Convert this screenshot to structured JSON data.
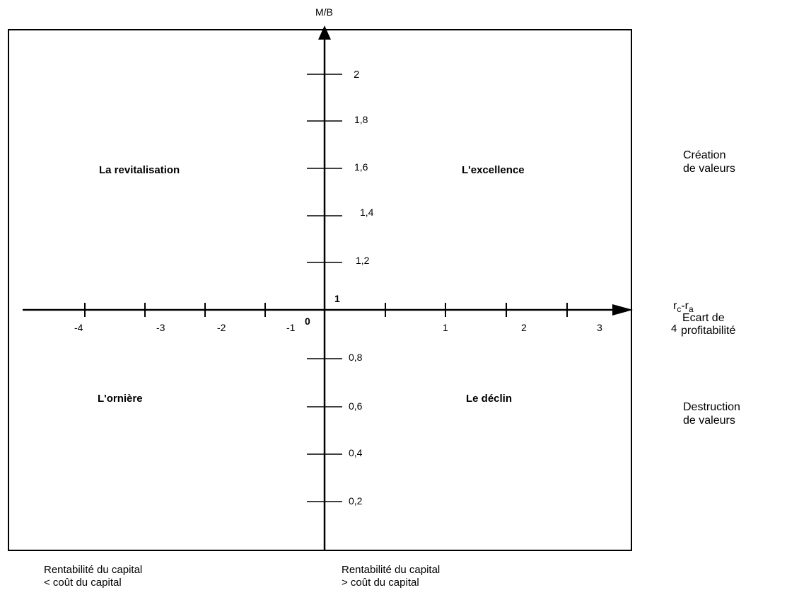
{
  "y_axis_label": "M/B",
  "x_axis": {
    "symbol_main": "r",
    "sub_c": "c",
    "sep": "-r",
    "sub_a": "a",
    "line1": "Ecart de",
    "line2": "profitabilité",
    "extra_tick": "4"
  },
  "quadrants": {
    "top_left": "La revitalisation",
    "top_right": "L'excellence",
    "bottom_left": "L'ornière",
    "bottom_right": "Le déclin"
  },
  "side_labels": {
    "upper_line1": "Création",
    "upper_line2": "de valeurs",
    "lower_line1": "Destruction",
    "lower_line2": "de valeurs"
  },
  "footer": {
    "left_line1": "Rentabilité du capital",
    "left_line2": "< coût du capital",
    "right_line1": "Rentabilité du capital",
    "right_line2": "> coût du capital"
  },
  "origin_label": "0",
  "y_one_label": "1",
  "y_ticks_upper": [
    "2",
    "1,8",
    "1,6",
    "1,4",
    "1,2"
  ],
  "y_ticks_lower": [
    "0,8",
    "0,6",
    "0,4",
    "0,2"
  ],
  "x_ticks_negative": [
    "-4",
    "-3",
    "-2",
    "-1"
  ],
  "x_ticks_positive": [
    "1",
    "2",
    "3"
  ]
}
